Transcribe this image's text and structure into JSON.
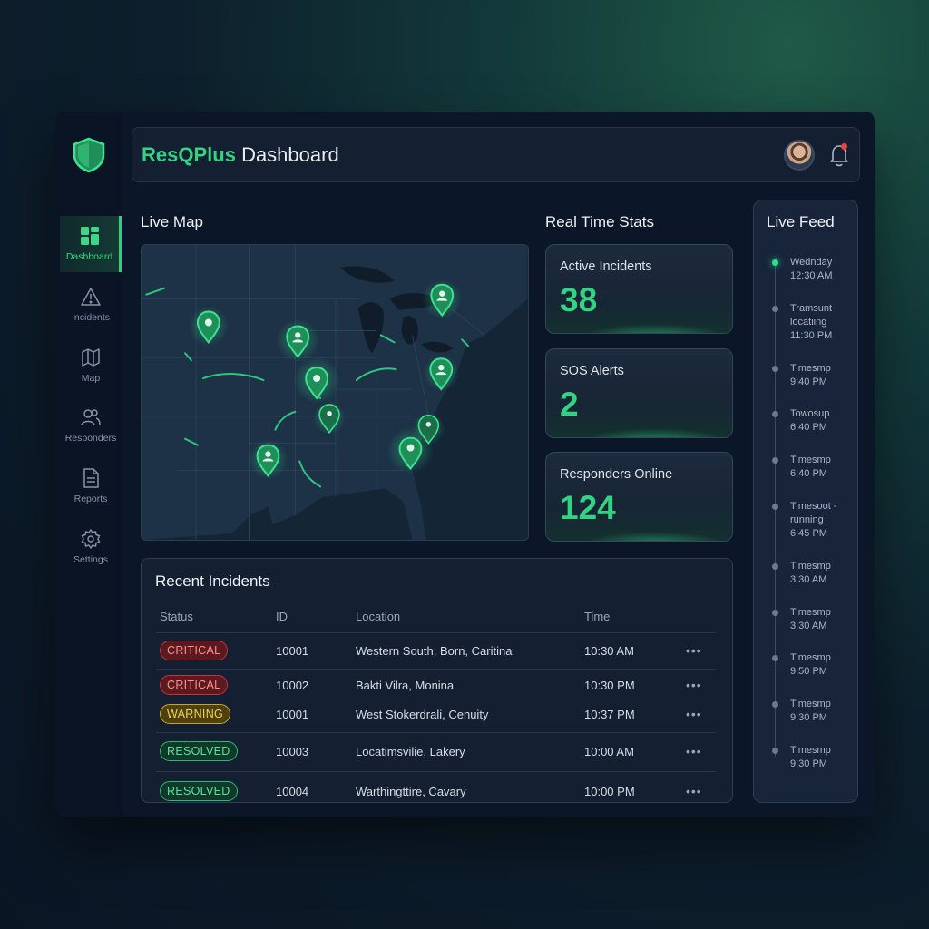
{
  "header": {
    "brand": "ResQPlus",
    "title_rest": "Dashboard"
  },
  "sidebar": {
    "items": [
      {
        "label": "Dashboard",
        "icon": "grid-icon",
        "active": true
      },
      {
        "label": "Incidents",
        "icon": "warning-icon"
      },
      {
        "label": "Map",
        "icon": "map-icon"
      },
      {
        "label": "Responders",
        "icon": "users-icon"
      },
      {
        "label": "Reports",
        "icon": "document-icon"
      },
      {
        "label": "Settings",
        "icon": "gear-icon"
      }
    ]
  },
  "live_map": {
    "title": "Live Map"
  },
  "stats": {
    "title": "Real Time Stats",
    "cards": [
      {
        "label": "Active Incidents",
        "value": "38"
      },
      {
        "label": "SOS Alerts",
        "value": "2"
      },
      {
        "label": "Responders Online",
        "value": "124"
      }
    ]
  },
  "feed": {
    "title": "Live Feed",
    "items": [
      {
        "line1": "Wednday",
        "line2": "12:30 AM"
      },
      {
        "line1": "Tramsunt",
        "line2": "locatiing",
        "line3": "11:30 PM"
      },
      {
        "line1": "Timesmp",
        "line2": "9:40 PM"
      },
      {
        "line1": "Towosup",
        "line2": "6:40 PM"
      },
      {
        "line1": "Timesmp",
        "line2": "6:40 PM"
      },
      {
        "line1": "Timesoot -",
        "line2": "running",
        "line3": "6:45 PM"
      },
      {
        "line1": "Timesmp",
        "line2": "3:30 AM"
      },
      {
        "line1": "Timesmp",
        "line2": "3:30 AM"
      },
      {
        "line1": "Timesmp",
        "line2": "9:50 PM"
      },
      {
        "line1": "Timesmp",
        "line2": "9:30 PM"
      },
      {
        "line1": "Timesmp",
        "line2": "9:30 PM"
      }
    ]
  },
  "incidents": {
    "title": "Recent Incidents",
    "columns": [
      "Status",
      "ID",
      "Location",
      "Time"
    ],
    "rows": [
      {
        "status": "CRITICAL",
        "id": "10001",
        "location": "Western South, Born, Caritina",
        "time": "10:30 AM",
        "more": "•••"
      },
      {
        "status": "CRITICAL",
        "id": "10002",
        "location": "Bakti Vilra, Monina",
        "time": "10:30 PM",
        "more": "•••"
      },
      {
        "status": "WARNING",
        "id": "10001",
        "location": "West Stokerdrali, Cenuity",
        "time": "10:37 PM",
        "more": "•••"
      },
      {
        "status": "RESOLVED",
        "id": "10003",
        "location": "Locatimsvilie, Lakery",
        "time": "10:00 AM",
        "more": "•••"
      },
      {
        "status": "RESOLVED",
        "id": "10004",
        "location": "Warthingttire, Cavary",
        "time": "10:00 PM",
        "more": "•••"
      }
    ]
  },
  "colors": {
    "accent": "#34d283",
    "critical": "#c8323a",
    "warning": "#c9a523",
    "resolved": "#2db872"
  }
}
